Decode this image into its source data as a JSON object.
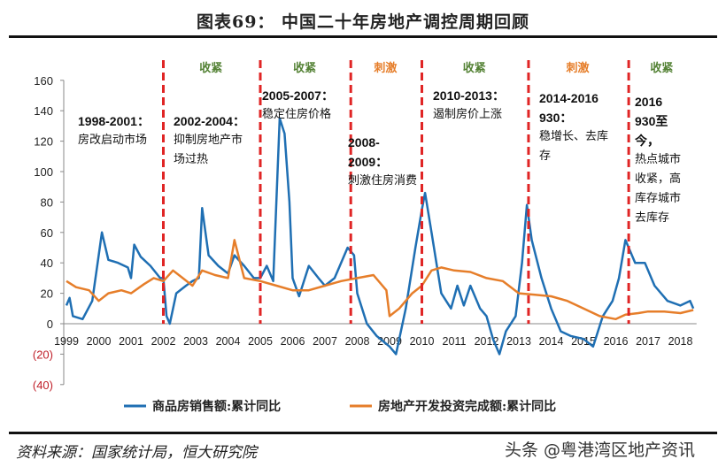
{
  "title": "图表69：  中国二十年房地产调控周期回顾",
  "source": "资料来源：国家统计局，恒大研究院",
  "watermark": "头条 @粤港湾区地产资讯",
  "colors": {
    "sales": "#1f6fb3",
    "investment": "#e67e2a",
    "divider": "#e02525",
    "tighten": "#548235",
    "stimulus": "#e67e2a",
    "negative_label": "#c0202a"
  },
  "phases": [
    {
      "label": "收紧",
      "type": "tighten"
    },
    {
      "label": "收紧",
      "type": "tighten"
    },
    {
      "label": "刺激",
      "type": "stimulus"
    },
    {
      "label": "收紧",
      "type": "tighten"
    },
    {
      "label": "刺激",
      "type": "stimulus"
    },
    {
      "label": "收紧",
      "type": "tighten"
    }
  ],
  "annotations": [
    {
      "period": "1998-2001：",
      "text": "房改启动市场"
    },
    {
      "period": "2002-2004：",
      "text": "抑制房地产市场过热"
    },
    {
      "period": "2005-2007：",
      "text": "稳定住房价格"
    },
    {
      "period": "2008-2009：",
      "text": "刺激住房消费"
    },
    {
      "period": "2010-2013：",
      "text": "遏制房价上涨"
    },
    {
      "period": "2014-2016 930：",
      "text": "稳增长、去库存"
    },
    {
      "period": "2016 930至今，",
      "text": "热点城市收紧，高库存城市去库存"
    }
  ],
  "chart_data": {
    "type": "line",
    "title": "",
    "xlabel": "",
    "ylabel": "",
    "xticks": [
      "1999",
      "2000",
      "2001",
      "2002",
      "2003",
      "2004",
      "2005",
      "2006",
      "2007",
      "2008",
      "2009",
      "2010",
      "2011",
      "2012",
      "2013",
      "2014",
      "2015",
      "2016",
      "2017",
      "2018"
    ],
    "yticks": [
      "160",
      "140",
      "120",
      "100",
      "80",
      "60",
      "40",
      "20",
      "0",
      "(20)",
      "(40)"
    ],
    "ylim": [
      -40,
      160
    ],
    "xlim": [
      1999,
      2018.5
    ],
    "grid": false,
    "legend": "bottom",
    "dividers": [
      2002.0,
      2005.0,
      2007.8,
      2010.0,
      2013.3,
      2016.4
    ],
    "series": [
      {
        "name": "商品房销售额:累计同比",
        "x": [
          1999.0,
          1999.1,
          1999.2,
          1999.5,
          1999.8,
          2000.0,
          2000.1,
          2000.3,
          2000.6,
          2000.9,
          2001.0,
          2001.1,
          2001.3,
          2001.6,
          2001.9,
          2002.0,
          2002.1,
          2002.2,
          2002.4,
          2002.7,
          2002.9,
          2003.1,
          2003.2,
          2003.4,
          2003.7,
          2004.0,
          2004.2,
          2004.5,
          2004.8,
          2005.0,
          2005.2,
          2005.4,
          2005.6,
          2005.75,
          2005.9,
          2006.0,
          2006.2,
          2006.5,
          2006.8,
          2007.0,
          2007.3,
          2007.7,
          2007.9,
          2008.0,
          2008.3,
          2008.6,
          2009.0,
          2009.2,
          2009.5,
          2009.8,
          2010.0,
          2010.1,
          2010.3,
          2010.6,
          2010.9,
          2011.1,
          2011.3,
          2011.5,
          2011.8,
          2012.0,
          2012.2,
          2012.4,
          2012.6,
          2012.9,
          2013.1,
          2013.25,
          2013.4,
          2013.7,
          2014.0,
          2014.3,
          2014.6,
          2015.0,
          2015.3,
          2015.6,
          2015.9,
          2016.1,
          2016.3,
          2016.6,
          2016.9,
          2017.2,
          2017.6,
          2018.0,
          2018.3,
          2018.4
        ],
        "values": [
          12,
          17,
          5,
          3,
          15,
          45,
          60,
          42,
          40,
          37,
          30,
          52,
          44,
          38,
          30,
          30,
          5,
          0,
          20,
          25,
          28,
          30,
          76,
          45,
          38,
          33,
          45,
          38,
          30,
          30,
          38,
          28,
          135,
          125,
          80,
          30,
          18,
          38,
          30,
          25,
          30,
          50,
          45,
          20,
          0,
          -8,
          -15,
          -20,
          10,
          50,
          75,
          86,
          60,
          20,
          10,
          25,
          12,
          25,
          10,
          5,
          -10,
          -20,
          -5,
          5,
          40,
          78,
          55,
          30,
          10,
          -5,
          -8,
          -10,
          -15,
          5,
          15,
          30,
          55,
          40,
          40,
          25,
          15,
          12,
          15,
          10
        ]
      },
      {
        "name": "房地产开发投资完成额:累计同比",
        "x": [
          1999.0,
          1999.3,
          1999.7,
          2000.0,
          2000.3,
          2000.7,
          2001.0,
          2001.4,
          2001.7,
          2002.0,
          2002.3,
          2002.6,
          2002.9,
          2003.2,
          2003.6,
          2004.0,
          2004.2,
          2004.5,
          2005.0,
          2005.5,
          2006.0,
          2006.5,
          2007.0,
          2007.5,
          2008.0,
          2008.5,
          2008.9,
          2009.0,
          2009.3,
          2009.7,
          2010.0,
          2010.3,
          2010.6,
          2011.0,
          2011.5,
          2012.0,
          2012.5,
          2013.0,
          2013.5,
          2014.0,
          2014.5,
          2015.0,
          2015.5,
          2016.0,
          2016.3,
          2016.7,
          2017.0,
          2017.5,
          2018.0,
          2018.4
        ],
        "values": [
          28,
          24,
          22,
          15,
          20,
          22,
          20,
          26,
          30,
          28,
          35,
          30,
          25,
          35,
          32,
          30,
          55,
          30,
          28,
          25,
          22,
          22,
          25,
          28,
          30,
          32,
          22,
          5,
          10,
          20,
          25,
          35,
          37,
          35,
          34,
          30,
          28,
          20,
          19,
          18,
          15,
          10,
          5,
          3,
          6,
          7,
          8,
          8,
          7,
          9
        ]
      }
    ]
  }
}
